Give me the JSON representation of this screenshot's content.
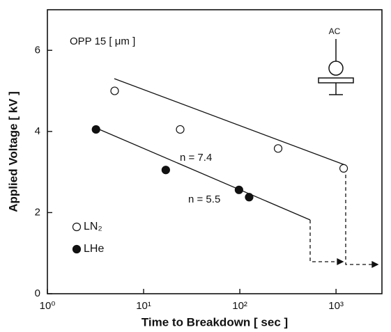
{
  "chart_data": {
    "type": "scatter",
    "x_label": "Time to Breakdown [ sec ]",
    "y_label": "Applied Voltage [ kV ]",
    "annotations": [
      "OPP  15 [ μm ]",
      "n = 7.4",
      "n = 5.5",
      "AC"
    ],
    "xscale": "log",
    "xlim": [
      1,
      3000
    ],
    "xticks": [
      {
        "value": 1,
        "label": "10⁰"
      },
      {
        "value": 10,
        "label": "10¹"
      },
      {
        "value": 100,
        "label": "10²"
      },
      {
        "value": 1000,
        "label": "10³"
      }
    ],
    "ylim": [
      0,
      7
    ],
    "yticks": [
      0,
      2,
      4,
      6
    ],
    "legend": "lower left",
    "series": [
      {
        "name": "LN₂",
        "color": "#ffffff",
        "x": [
          5.0,
          24,
          250,
          1200
        ],
        "values": [
          5.0,
          4.05,
          3.58,
          3.09
        ]
      },
      {
        "name": "LHe",
        "color": "#111111",
        "x": [
          3.2,
          17,
          98,
          125
        ],
        "values": [
          4.05,
          3.05,
          2.56,
          2.38
        ]
      }
    ]
  }
}
